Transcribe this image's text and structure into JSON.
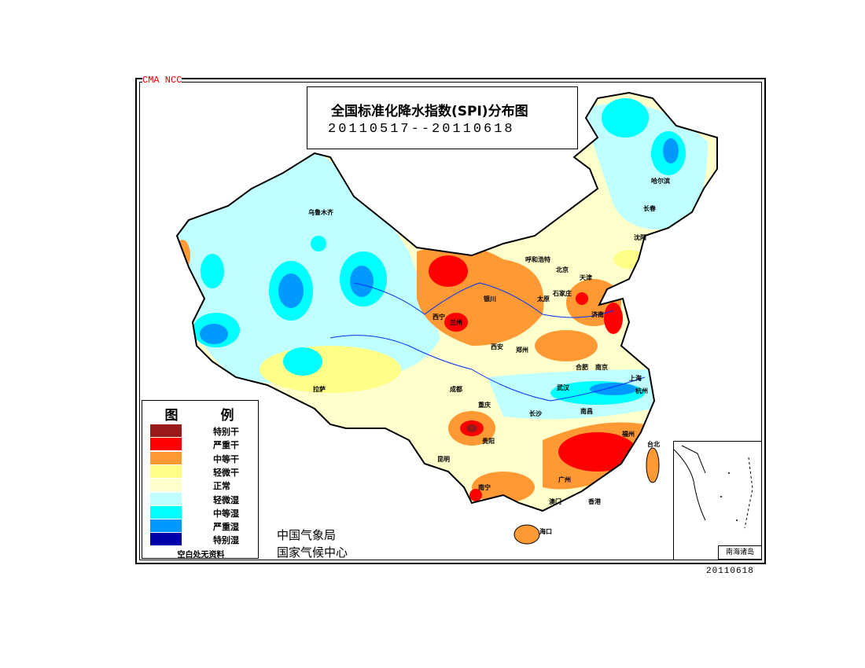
{
  "header": {
    "watermark": "CMA NCC",
    "title": "全国标准化降水指数(SPI)分布图",
    "period": "20110517--20110618"
  },
  "legend": {
    "title": "图 例",
    "items": [
      {
        "label": "特别干",
        "color": "#991a1a"
      },
      {
        "label": "严重干",
        "color": "#ff0000"
      },
      {
        "label": "中等干",
        "color": "#ff9933"
      },
      {
        "label": "轻微干",
        "color": "#ffff88"
      },
      {
        "label": "正常",
        "color": "#ffffcc"
      },
      {
        "label": "轻微湿",
        "color": "#c0ffff"
      },
      {
        "label": "中等湿",
        "color": "#00ffff"
      },
      {
        "label": "严重湿",
        "color": "#0099ff"
      },
      {
        "label": "特别湿",
        "color": "#0000aa"
      }
    ],
    "no_data_note": "空白处无资料"
  },
  "footer": {
    "org1": "中国气象局",
    "org2": "国家气候中心",
    "date": "20110618",
    "inset_label": "南海诸岛"
  },
  "cities": [
    "乌鲁木齐",
    "哈尔滨",
    "长春",
    "沈阳",
    "呼和浩特",
    "北京",
    "天津",
    "石家庄",
    "太原",
    "济南",
    "银川",
    "西宁",
    "兰州",
    "西安",
    "郑州",
    "合肥",
    "南京",
    "上海",
    "杭州",
    "武汉",
    "长沙",
    "南昌",
    "福州",
    "台北",
    "成都",
    "重庆",
    "贵阳",
    "昆明",
    "南宁",
    "广州",
    "澳门",
    "香港",
    "海口",
    "拉萨"
  ]
}
